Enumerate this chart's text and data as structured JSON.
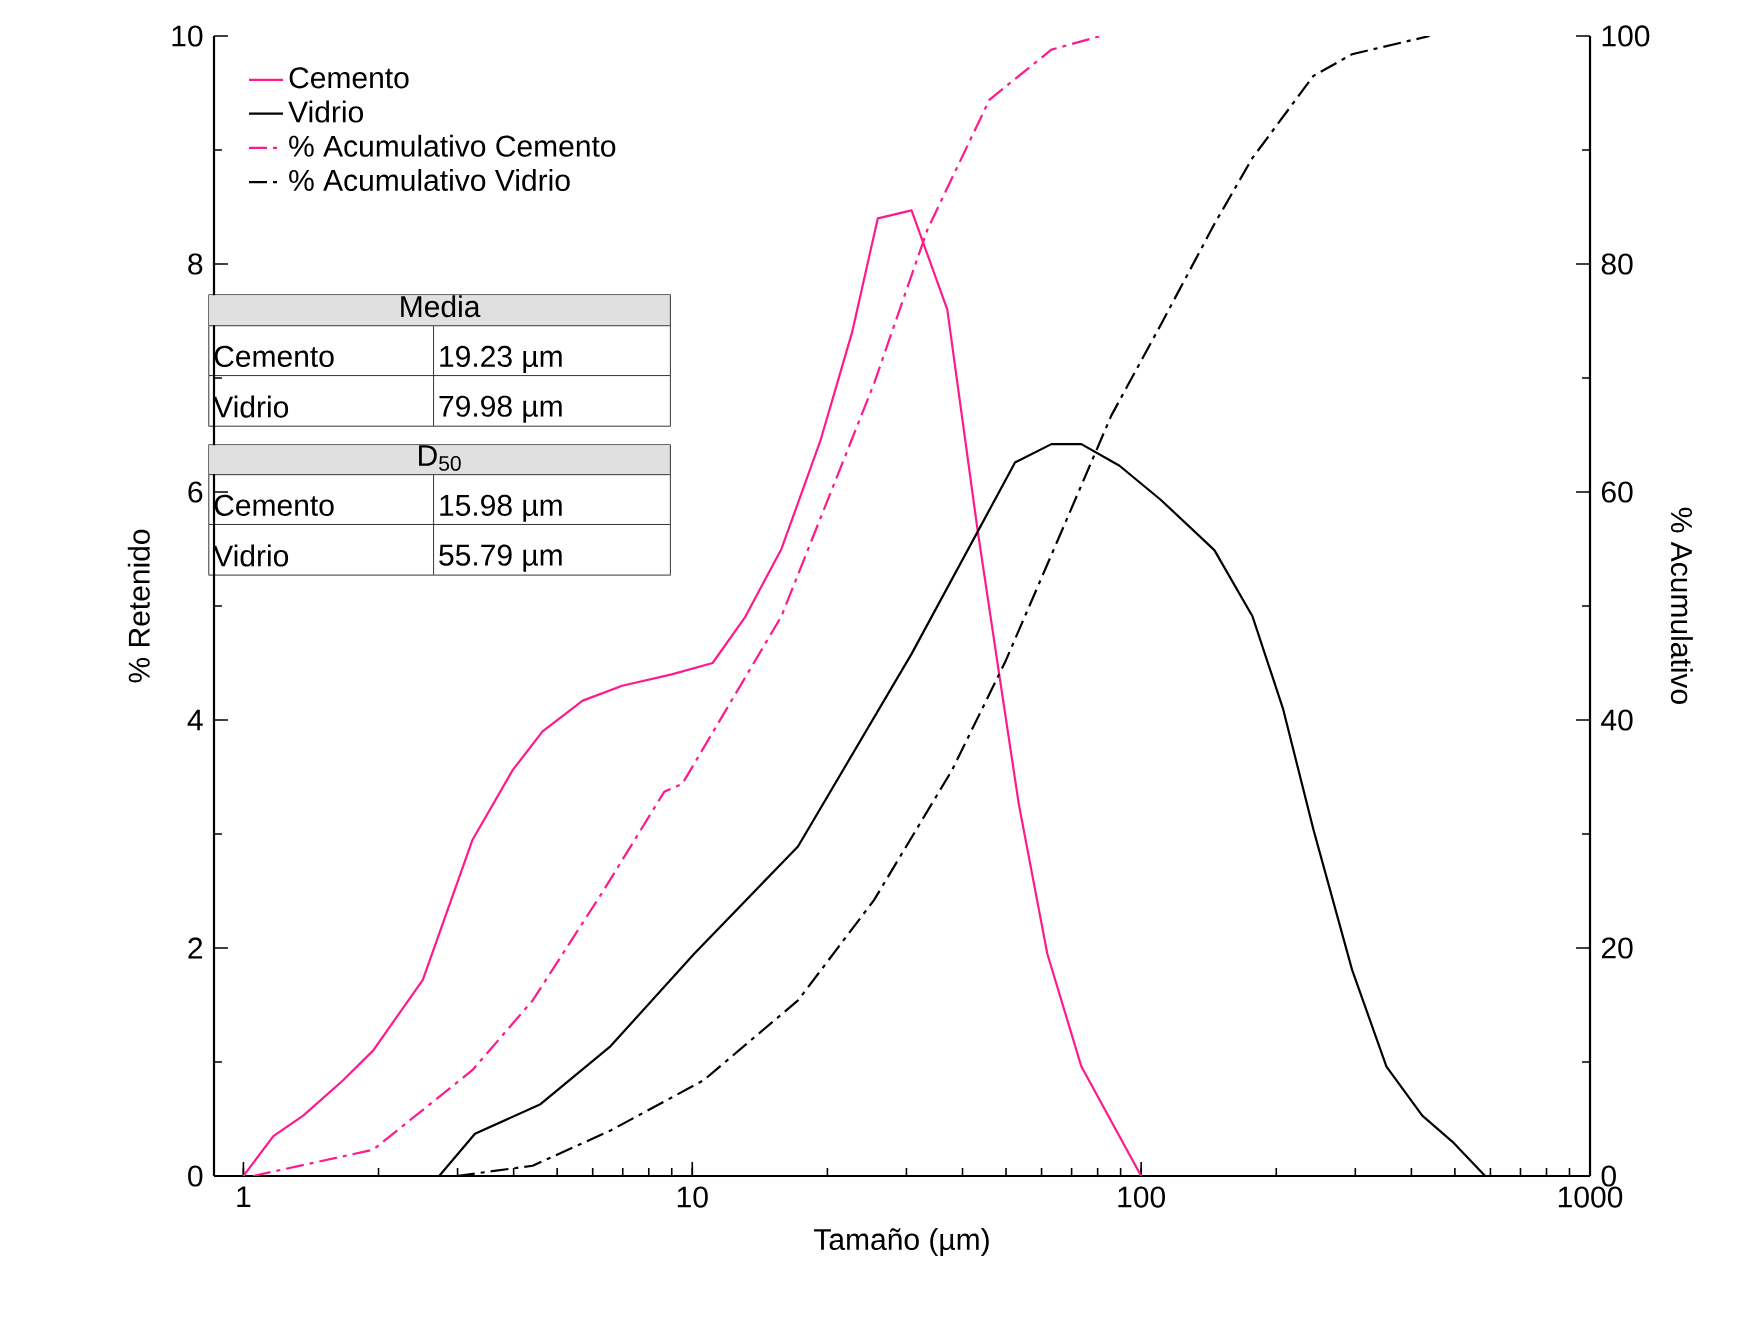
{
  "chart_data": {
    "type": "line",
    "xlabel": "Tamaño (µm)",
    "ylabel": "% Retenido",
    "y2label": "% Acumulativo",
    "log": "x",
    "xlim": [
      0.86,
      1000
    ],
    "xticks": [
      1,
      10,
      100,
      1000
    ],
    "ylim": [
      0,
      10
    ],
    "yticks": [
      0,
      2,
      4,
      6,
      8,
      10
    ],
    "y2lim": [
      0,
      100
    ],
    "y2ticks": [
      0,
      20,
      40,
      60,
      80,
      100
    ],
    "legend": "top left",
    "grid": false,
    "marker": "none",
    "series": [
      {
        "name": "Cemento",
        "color": "#ff1a8c",
        "line_style": "solid",
        "x": [
          1,
          1.166,
          1.359,
          1.668,
          1.945,
          2.51,
          3.24,
          3.98,
          4.64,
          5.7,
          6.98,
          9.0,
          11.1,
          13.1,
          15.8,
          19.3,
          22.7,
          25.9,
          30.8,
          37.0,
          43.2,
          48.8,
          53.4,
          61.8,
          73.6,
          100
        ],
        "values": [
          0,
          0.35,
          0.53,
          0.84,
          1.1,
          1.72,
          2.95,
          3.56,
          3.9,
          4.17,
          4.3,
          4.4,
          4.5,
          4.9,
          5.5,
          6.45,
          7.4,
          8.4,
          8.47,
          7.6,
          5.67,
          4.28,
          3.26,
          1.95,
          0.96,
          0
        ]
      },
      {
        "name": "Vidrio",
        "color": "#000000",
        "line_style": "solid",
        "x": [
          2.73,
          3.28,
          4.59,
          6.58,
          10.1,
          17.2,
          30.8,
          52.4,
          63.1,
          73.6,
          89.5,
          110.7,
          145.6,
          177,
          207,
          242,
          295,
          352,
          423,
          494,
          584
        ],
        "values": [
          0,
          0.37,
          0.63,
          1.14,
          1.95,
          2.89,
          4.58,
          6.26,
          6.42,
          6.42,
          6.23,
          5.93,
          5.49,
          4.91,
          4.1,
          3.04,
          1.81,
          0.96,
          0.53,
          0.3,
          0
        ]
      },
      {
        "name": "% Acumulativo Cemento",
        "color": "#ff1a8c",
        "line_style": "dashdot",
        "axis": "y2",
        "x": [
          1.05,
          1.945,
          3.24,
          4.41,
          6.31,
          8.66,
          9.5,
          15.8,
          25.4,
          33.4,
          45.9,
          63.1,
          81.2
        ],
        "values": [
          0,
          2.3,
          9.3,
          15.4,
          24.9,
          33.7,
          34.4,
          49.1,
          69.5,
          83,
          94.4,
          98.8,
          100
        ]
      },
      {
        "name": "% Acumulativo Vidrio",
        "color": "#000000",
        "line_style": "dashdot",
        "axis": "y2",
        "x": [
          2.99,
          4.41,
          6.58,
          10.6,
          17.2,
          25.4,
          37.9,
          49.8,
          67.6,
          85.8,
          110.7,
          145.6,
          177,
          242,
          295,
          439
        ],
        "values": [
          0,
          0.9,
          4,
          8.4,
          15.4,
          24.2,
          35.6,
          45.1,
          57.2,
          66.7,
          74.7,
          83.5,
          89.3,
          96.5,
          98.4,
          100
        ]
      }
    ],
    "annotations": [
      "Media",
      "Cemento",
      "19.23 µm",
      "Vidrio",
      "79.98 µm",
      "D$_{50}$",
      "Cemento",
      "15.98 µm",
      "Vidrio",
      "55.79 µm"
    ]
  }
}
